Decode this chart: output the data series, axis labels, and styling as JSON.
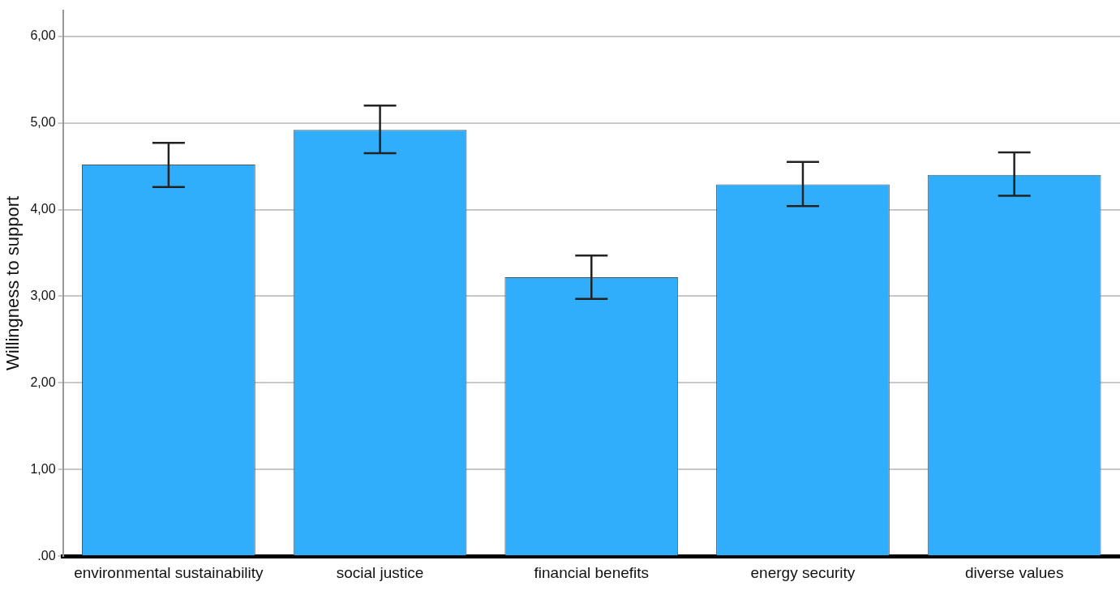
{
  "chart_data": {
    "type": "bar",
    "ylabel": "Willingness to support",
    "categories": [
      "environmental sustainability",
      "social justice",
      "financial benefits",
      "energy security",
      "diverse values"
    ],
    "values": [
      4.52,
      4.92,
      3.22,
      4.29,
      4.4
    ],
    "errors": [
      [
        4.26,
        4.77
      ],
      [
        4.65,
        5.2
      ],
      [
        2.97,
        3.47
      ],
      [
        4.04,
        4.55
      ],
      [
        4.16,
        4.66
      ]
    ],
    "color": "#30aefc",
    "ylim": [
      0,
      6.3
    ],
    "yticks": [
      {
        "value": 0,
        "label": ".00"
      },
      {
        "value": 1,
        "label": "1,00"
      },
      {
        "value": 2,
        "label": "2,00"
      },
      {
        "value": 3,
        "label": "3,00"
      },
      {
        "value": 4,
        "label": "4,00"
      },
      {
        "value": 5,
        "label": "5,00"
      },
      {
        "value": 6,
        "label": "6,00"
      }
    ],
    "grid": "y",
    "legend": false
  }
}
